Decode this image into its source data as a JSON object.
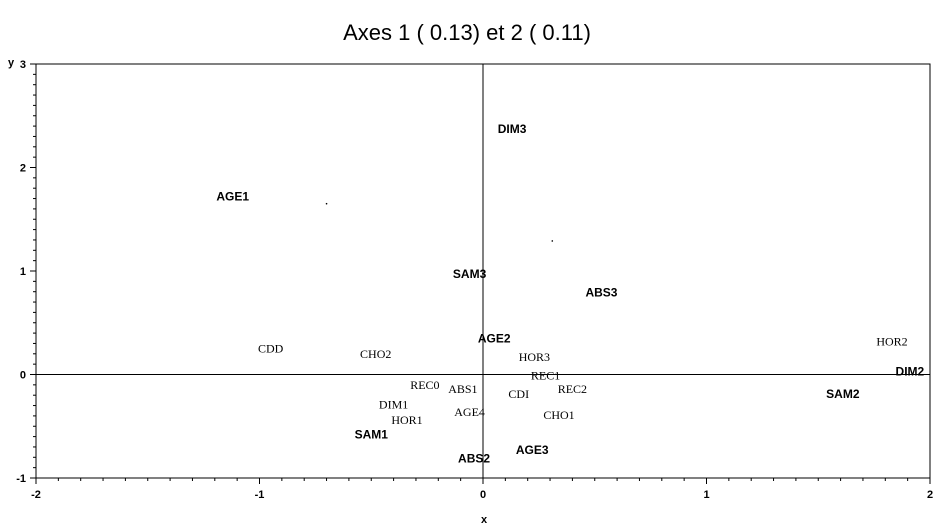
{
  "chart_data": {
    "type": "scatter",
    "title": "Axes 1 (  0.13) et 2 (  0.11)",
    "xlabel": "x",
    "ylabel": "y",
    "xlim": [
      -2,
      2
    ],
    "ylim": [
      -1,
      3
    ],
    "x_ticks": [
      "-2",
      "-1",
      "0",
      "1",
      "2"
    ],
    "y_ticks": [
      "-1",
      "0",
      "1",
      "2",
      "3"
    ],
    "reference_lines": [
      0,
      0
    ],
    "points": [
      {
        "label": "AGE1",
        "x": -1.12,
        "y": 1.72,
        "style": "sans"
      },
      {
        "label": "DIM3",
        "x": 0.13,
        "y": 2.37,
        "style": "sans"
      },
      {
        "label": "SAM3",
        "x": -0.06,
        "y": 0.97,
        "style": "sans"
      },
      {
        "label": "ABS3",
        "x": 0.53,
        "y": 0.79,
        "style": "sans"
      },
      {
        "label": "CDD",
        "x": -0.95,
        "y": 0.25,
        "style": "serif"
      },
      {
        "label": "CHO2",
        "x": -0.48,
        "y": 0.2,
        "style": "serif"
      },
      {
        "label": "AGE2",
        "x": 0.05,
        "y": 0.35,
        "style": "sans"
      },
      {
        "label": "HOR3",
        "x": 0.23,
        "y": 0.17,
        "style": "serif"
      },
      {
        "label": "HOR2",
        "x": 1.83,
        "y": 0.32,
        "style": "serif"
      },
      {
        "label": "DIM2",
        "x": 1.91,
        "y": 0.03,
        "style": "sans"
      },
      {
        "label": "REC1",
        "x": 0.28,
        "y": -0.01,
        "style": "serif"
      },
      {
        "label": "REC0",
        "x": -0.26,
        "y": -0.1,
        "style": "serif"
      },
      {
        "label": "ABS1",
        "x": -0.09,
        "y": -0.14,
        "style": "serif"
      },
      {
        "label": "REC2",
        "x": 0.4,
        "y": -0.14,
        "style": "serif"
      },
      {
        "label": "CDI",
        "x": 0.16,
        "y": -0.19,
        "style": "serif"
      },
      {
        "label": "SAM2",
        "x": 1.61,
        "y": -0.19,
        "style": "sans"
      },
      {
        "label": "DIM1",
        "x": -0.4,
        "y": -0.29,
        "style": "serif"
      },
      {
        "label": "HOR1",
        "x": -0.34,
        "y": -0.44,
        "style": "serif"
      },
      {
        "label": "AGE4",
        "x": -0.06,
        "y": -0.36,
        "style": "serif"
      },
      {
        "label": "CHO1",
        "x": 0.34,
        "y": -0.39,
        "style": "serif"
      },
      {
        "label": "SAM1",
        "x": -0.5,
        "y": -0.58,
        "style": "sans"
      },
      {
        "label": "AGE3",
        "x": 0.22,
        "y": -0.73,
        "style": "sans"
      },
      {
        "label": "ABS2",
        "x": -0.04,
        "y": -0.81,
        "style": "sans"
      }
    ],
    "stray_dots": [
      {
        "x": -0.7,
        "y": 1.65
      },
      {
        "x": 0.31,
        "y": 1.29
      }
    ]
  }
}
